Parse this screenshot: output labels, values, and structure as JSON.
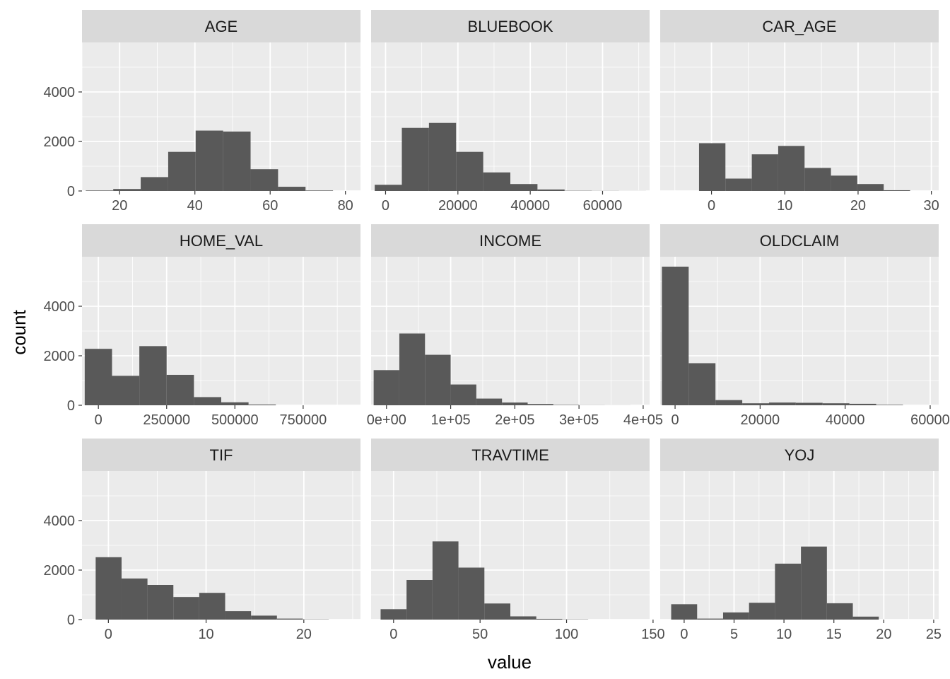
{
  "figure": {
    "xlabel": "value",
    "ylabel": "count",
    "panel_background": "#ebebeb",
    "strip_background": "#d9d9d9",
    "bar_color": "#595959",
    "gridline_color": "#ffffff"
  },
  "chart_data": [
    {
      "type": "bar",
      "title": "AGE",
      "xlim": [
        10,
        84
      ],
      "ylim": [
        0,
        6000
      ],
      "xticks": [
        20,
        40,
        60,
        80
      ],
      "xtick_labels": [
        "20",
        "40",
        "60",
        "80"
      ],
      "yticks": [
        0,
        2000,
        4000
      ],
      "ytick_labels": [
        "0",
        "2000",
        "4000"
      ],
      "bin_edges": [
        11,
        18.3,
        25.6,
        32.9,
        40.2,
        47.5,
        54.8,
        62.1,
        69.4,
        76.7
      ],
      "values": [
        20,
        80,
        560,
        1580,
        2440,
        2400,
        880,
        170,
        20
      ]
    },
    {
      "type": "bar",
      "title": "BLUEBOOK",
      "xlim": [
        -4000,
        73000
      ],
      "ylim": [
        0,
        6000
      ],
      "xticks": [
        0,
        20000,
        40000,
        60000
      ],
      "xtick_labels": [
        "0",
        "20000",
        "40000",
        "60000"
      ],
      "yticks": [
        0,
        2000,
        4000
      ],
      "ytick_labels": [
        "0",
        "2000",
        "4000"
      ],
      "bin_edges": [
        -3000,
        4500,
        12000,
        19500,
        27000,
        34500,
        42000,
        49500,
        57000,
        64500,
        72000
      ],
      "values": [
        250,
        2550,
        2750,
        1580,
        750,
        280,
        60,
        10,
        5,
        2
      ]
    },
    {
      "type": "bar",
      "title": "CAR_AGE",
      "xlim": [
        -7,
        31
      ],
      "ylim": [
        0,
        6000
      ],
      "xticks": [
        0,
        10,
        20,
        30
      ],
      "xtick_labels": [
        "0",
        "10",
        "20",
        "30"
      ],
      "yticks": [
        0,
        2000,
        4000
      ],
      "ytick_labels": [
        "0",
        "2000",
        "4000"
      ],
      "bin_edges": [
        -1.7,
        1.9,
        5.5,
        9.1,
        12.7,
        16.3,
        19.9,
        23.5,
        27.1
      ],
      "values": [
        1930,
        500,
        1480,
        1820,
        930,
        620,
        280,
        30
      ]
    },
    {
      "type": "bar",
      "title": "HOME_VAL",
      "xlim": [
        -60000,
        960000
      ],
      "ylim": [
        0,
        6000
      ],
      "xticks": [
        0,
        250000,
        500000,
        750000
      ],
      "xtick_labels": [
        "0",
        "250000",
        "500000",
        "750000"
      ],
      "yticks": [
        0,
        2000,
        4000
      ],
      "ytick_labels": [
        "0",
        "2000",
        "4000"
      ],
      "bin_edges": [
        -50000,
        50000,
        150000,
        250000,
        350000,
        450000,
        550000,
        650000
      ],
      "values": [
        2280,
        1190,
        2390,
        1230,
        330,
        120,
        30
      ]
    },
    {
      "type": "bar",
      "title": "INCOME",
      "xlim": [
        -24000,
        410000
      ],
      "ylim": [
        0,
        6000
      ],
      "xticks": [
        0,
        100000,
        200000,
        300000,
        400000
      ],
      "xtick_labels": [
        "0e+00",
        "1e+05",
        "2e+05",
        "3e+05",
        "4e+05"
      ],
      "yticks": [
        0,
        2000,
        4000
      ],
      "ytick_labels": [
        "0",
        "2000",
        "4000"
      ],
      "bin_edges": [
        -20000,
        20000,
        60000,
        100000,
        140000,
        180000,
        220000,
        260000,
        300000,
        340000,
        380000
      ],
      "values": [
        1420,
        2900,
        2040,
        840,
        270,
        110,
        50,
        15,
        5,
        2
      ]
    },
    {
      "type": "bar",
      "title": "OLDCLAIM",
      "xlim": [
        -3500,
        62000
      ],
      "ylim": [
        0,
        6000
      ],
      "xticks": [
        0,
        20000,
        40000,
        60000
      ],
      "xtick_labels": [
        "0",
        "20000",
        "40000",
        "60000"
      ],
      "yticks": [
        0,
        2000,
        4000
      ],
      "ytick_labels": [
        "0",
        "2000",
        "4000"
      ],
      "bin_edges": [
        -3100,
        3200,
        9500,
        15800,
        22100,
        28400,
        34700,
        41000,
        47300,
        53600
      ],
      "values": [
        5600,
        1700,
        210,
        80,
        110,
        100,
        80,
        60,
        20
      ]
    },
    {
      "type": "bar",
      "title": "TIF",
      "xlim": [
        -2.7,
        25.8
      ],
      "ylim": [
        0,
        6000
      ],
      "xticks": [
        0,
        10,
        20
      ],
      "xtick_labels": [
        "0",
        "10",
        "20"
      ],
      "yticks": [
        0,
        2000,
        4000
      ],
      "ytick_labels": [
        "0",
        "2000",
        "4000"
      ],
      "bin_edges": [
        -1.3,
        1.35,
        4.0,
        6.65,
        9.3,
        11.95,
        14.6,
        17.25,
        19.9,
        22.55
      ],
      "values": [
        2520,
        1660,
        1400,
        910,
        1080,
        340,
        160,
        40,
        10
      ]
    },
    {
      "type": "bar",
      "title": "TRAVTIME",
      "xlim": [
        -13,
        148
      ],
      "ylim": [
        0,
        6000
      ],
      "xticks": [
        0,
        50,
        100,
        150
      ],
      "xtick_labels": [
        "0",
        "50",
        "100",
        "150"
      ],
      "yticks": [
        0,
        2000,
        4000
      ],
      "ytick_labels": [
        "0",
        "2000",
        "4000"
      ],
      "bin_edges": [
        -7.5,
        7.5,
        22.5,
        37.5,
        52.5,
        67.5,
        82.5,
        97.5,
        112.5
      ],
      "values": [
        420,
        1600,
        3160,
        2100,
        650,
        130,
        30,
        10
      ]
    },
    {
      "type": "bar",
      "title": "YOJ",
      "xlim": [
        -2.4,
        25.5
      ],
      "ylim": [
        0,
        6000
      ],
      "xticks": [
        0,
        5,
        10,
        15,
        20,
        25
      ],
      "xtick_labels": [
        "0",
        "5",
        "10",
        "15",
        "20",
        "25"
      ],
      "yticks": [
        0,
        2000,
        4000
      ],
      "ytick_labels": [
        "0",
        "2000",
        "4000"
      ],
      "bin_edges": [
        -1.3,
        1.3,
        3.9,
        6.5,
        9.1,
        11.7,
        14.3,
        16.9,
        19.5
      ],
      "values": [
        620,
        40,
        290,
        680,
        2260,
        2950,
        660,
        120
      ]
    }
  ]
}
